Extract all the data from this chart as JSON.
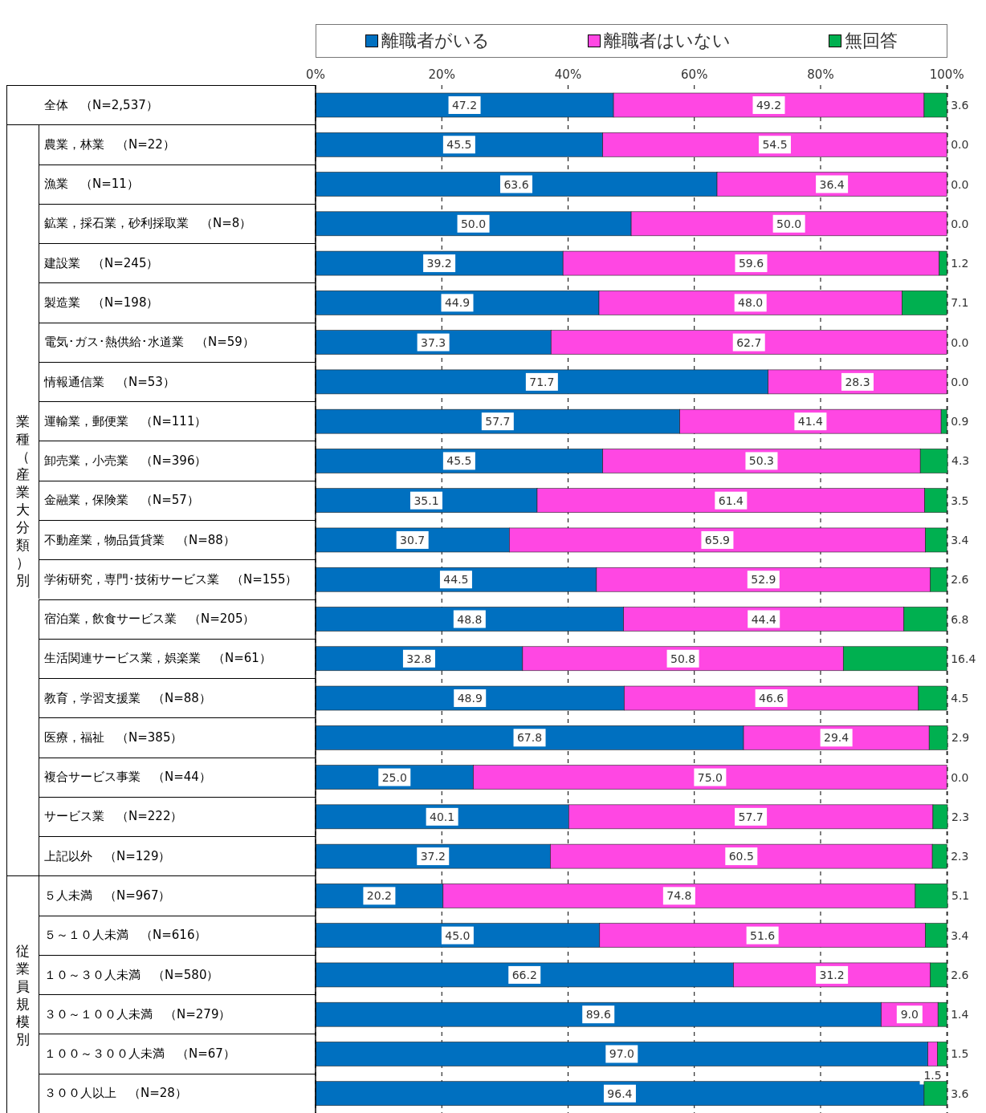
{
  "chart_data": {
    "type": "bar",
    "orientation": "horizontal",
    "stacked": true,
    "categories": [
      "全体　（N=2,537）",
      "農業，林業　（N=22）",
      "漁業　（N=11）",
      "鉱業，採石業，砂利採取業　（N=8）",
      "建設業　（N=245）",
      "製造業　（N=198）",
      "電気･ガス･熱供給･水道業　（N=59）",
      "情報通信業　（N=53）",
      "運輸業，郵便業　（N=111）",
      "卸売業，小売業　（N=396）",
      "金融業，保険業　（N=57）",
      "不動産業，物品賃貸業　（N=88）",
      "学術研究，専門･技術サービス業　（N=155）",
      "宿泊業，飲食サービス業　（N=205）",
      "生活関連サービス業，娯楽業　（N=61）",
      "教育，学習支援業　（N=88）",
      "医療，福祉　（N=385）",
      "複合サービス事業　（N=44）",
      "サービス業　（N=222）",
      "上記以外　（N=129）",
      "５人未満　（N=967）",
      "５～１０人未満　（N=616）",
      "１０～３０人未満　（N=580）",
      "３０～１００人未満　（N=279）",
      "１００～３００人未満　（N=67）",
      "３００人以上　（N=28）"
    ],
    "series": [
      {
        "name": "離職者がいる",
        "color": "#0070c0",
        "values": [
          47.2,
          45.5,
          63.6,
          50.0,
          39.2,
          44.9,
          37.3,
          71.7,
          57.7,
          45.5,
          35.1,
          30.7,
          44.5,
          48.8,
          32.8,
          48.9,
          67.8,
          25.0,
          40.1,
          37.2,
          20.2,
          45.0,
          66.2,
          89.6,
          97.0,
          96.4
        ],
        "value_labels": [
          "47.2",
          "45.5",
          "63.6",
          "50.0",
          "39.2",
          "44.9",
          "37.3",
          "71.7",
          "57.7",
          "45.5",
          "35.1",
          "30.7",
          "44.5",
          "48.8",
          "32.8",
          "48.9",
          "67.8",
          "25.0",
          "40.1",
          "37.2",
          "20.2",
          "45.0",
          "66.2",
          "89.6",
          "97.0",
          "96.4"
        ]
      },
      {
        "name": "離職者はいない",
        "color": "#ff47e3",
        "values": [
          49.2,
          54.5,
          36.4,
          50.0,
          59.6,
          48.0,
          62.7,
          28.3,
          41.4,
          50.3,
          61.4,
          65.9,
          52.9,
          44.4,
          50.8,
          46.6,
          29.4,
          75.0,
          57.7,
          60.5,
          74.8,
          51.6,
          31.2,
          9.0,
          1.5,
          0.0
        ],
        "value_labels": [
          "49.2",
          "54.5",
          "36.4",
          "50.0",
          "59.6",
          "48.0",
          "62.7",
          "28.3",
          "41.4",
          "50.3",
          "61.4",
          "65.9",
          "52.9",
          "44.4",
          "50.8",
          "46.6",
          "29.4",
          "75.0",
          "57.7",
          "60.5",
          "74.8",
          "51.6",
          "31.2",
          "9.0",
          "1.5",
          null
        ]
      },
      {
        "name": "無回答",
        "color": "#00b050",
        "values": [
          3.6,
          0.0,
          0.0,
          0.0,
          1.2,
          7.1,
          0.0,
          0.0,
          0.9,
          4.3,
          3.5,
          3.4,
          2.6,
          6.8,
          16.4,
          4.5,
          2.9,
          0.0,
          2.3,
          2.3,
          5.1,
          3.4,
          2.6,
          1.4,
          1.5,
          3.6
        ],
        "value_labels": [
          "3.6",
          "0.0",
          "0.0",
          "0.0",
          "1.2",
          "7.1",
          "0.0",
          "0.0",
          "0.9",
          "4.3",
          "3.5",
          "3.4",
          "2.6",
          "6.8",
          "16.4",
          "4.5",
          "2.9",
          "0.0",
          "2.3",
          "2.3",
          "5.1",
          "3.4",
          "2.6",
          "1.4",
          "1.5",
          "3.6"
        ]
      }
    ],
    "xlim": [
      0,
      100
    ],
    "xticks": [
      {
        "value": 0,
        "label": "0%"
      },
      {
        "value": 20,
        "label": "20%"
      },
      {
        "value": 40,
        "label": "40%"
      },
      {
        "value": 60,
        "label": "60%"
      },
      {
        "value": 80,
        "label": "80%"
      },
      {
        "value": 100,
        "label": "100%"
      }
    ],
    "annotations": [
      "業種（産業大分類）別",
      "従業員規模別"
    ],
    "grid": "x",
    "legend": "top"
  }
}
